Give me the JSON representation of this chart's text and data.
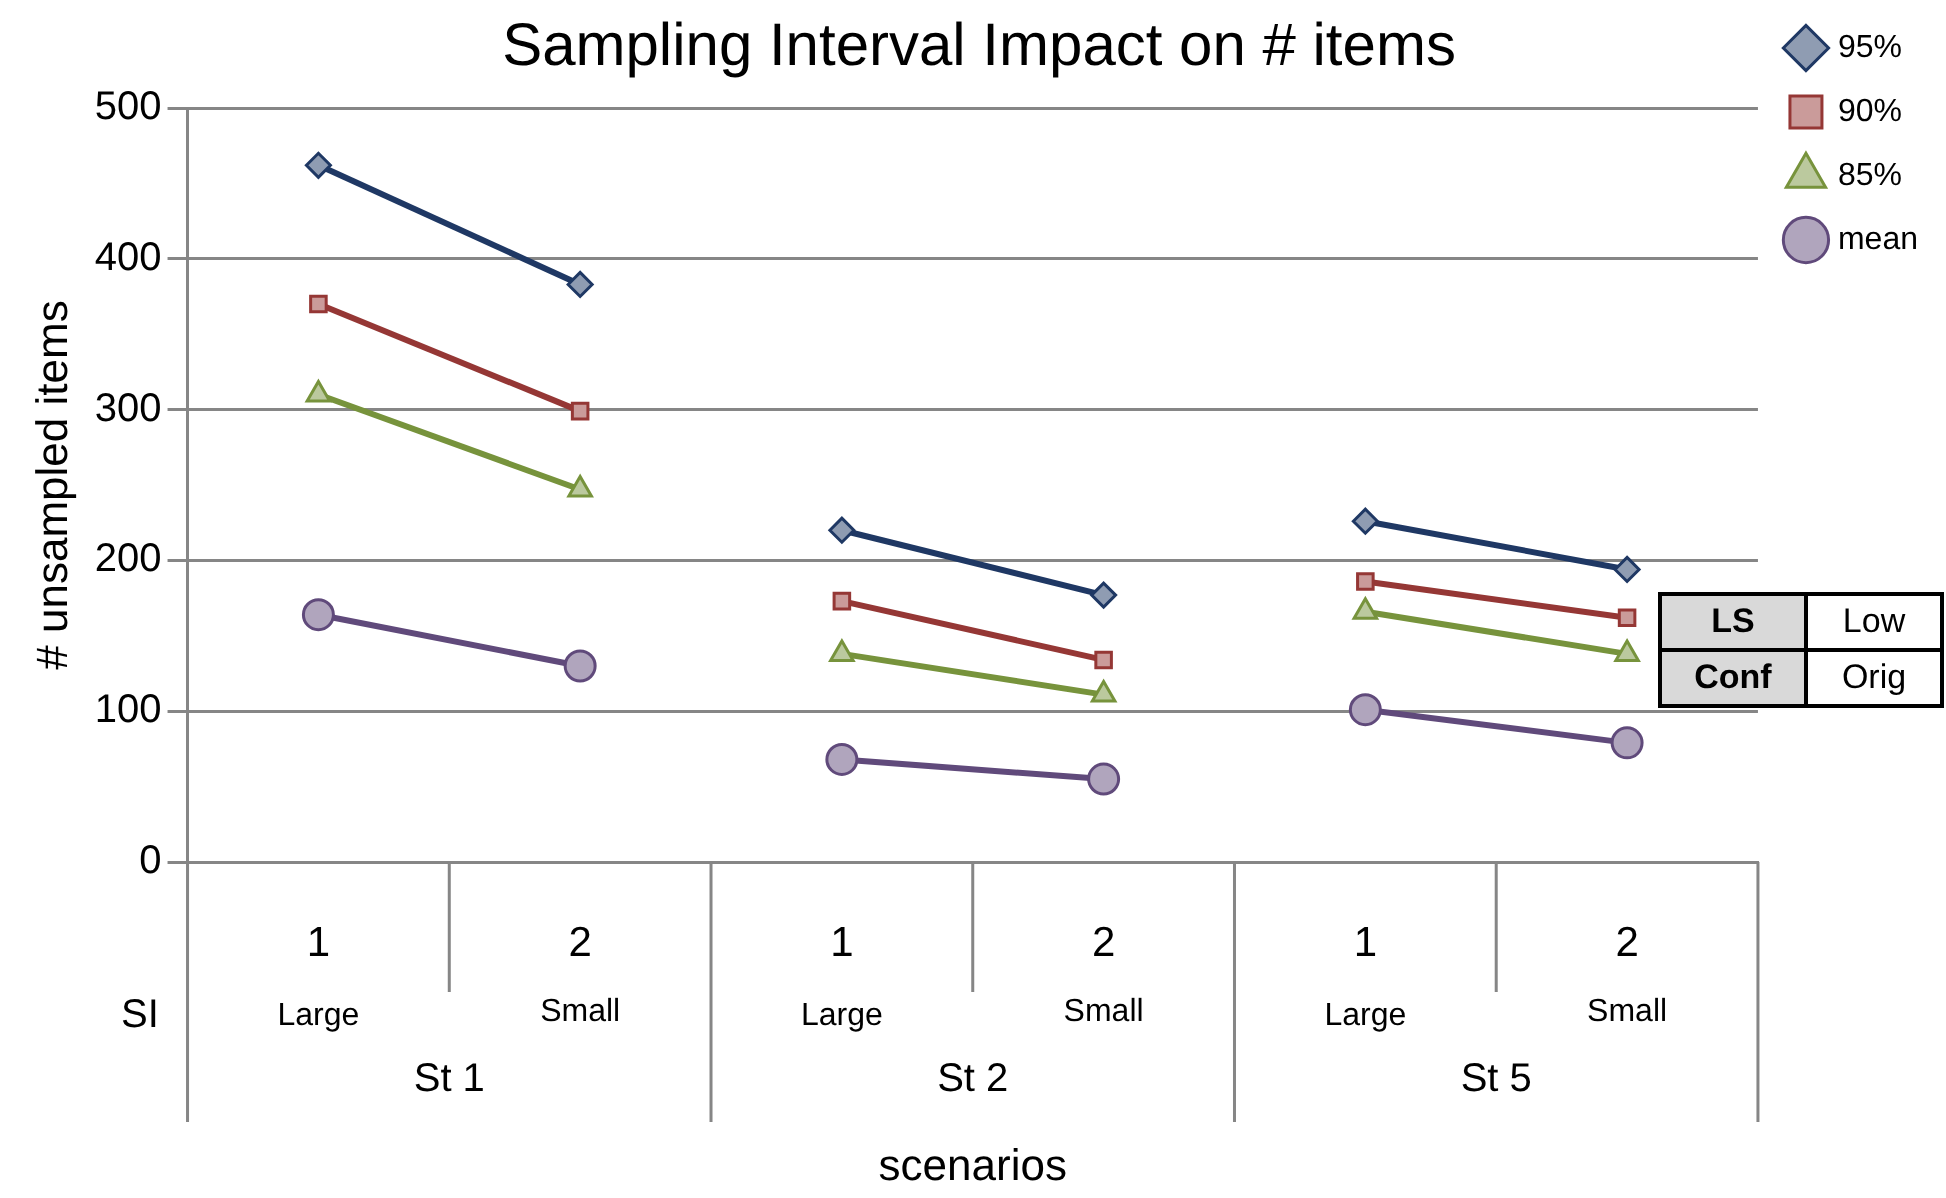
{
  "chart_data": {
    "type": "line",
    "title": "Sampling Interval Impact on # items",
    "xlabel": "scenarios",
    "ylabel": "# unsampled items",
    "categories": [
      "1",
      "2",
      "1",
      "2",
      "1",
      "2"
    ],
    "series": [
      {
        "name": "95%",
        "color": "#1f3864",
        "marker": "diamond",
        "values": [
          462,
          383,
          220,
          177,
          226,
          194
        ]
      },
      {
        "name": "90%",
        "color": "#953735",
        "marker": "square",
        "values": [
          370,
          299,
          173,
          134,
          186,
          162
        ]
      },
      {
        "name": "85%",
        "color": "#77933c",
        "marker": "triangle",
        "values": [
          310,
          247,
          138,
          111,
          166,
          138
        ]
      },
      {
        "name": "mean",
        "color": "#604a7b",
        "marker": "circle",
        "values": [
          164,
          130,
          68,
          55,
          101,
          79
        ]
      }
    ],
    "ylim": [
      0,
      500
    ],
    "yticks": [
      0,
      100,
      200,
      300,
      400,
      500
    ],
    "grid": "y",
    "legend": "right",
    "annotations": [
      "SI",
      "Large",
      "Small",
      "Large",
      "Small",
      "Large",
      "Small",
      "St 1",
      "St 2",
      "St 5",
      "LS",
      "Low",
      "Conf",
      "Orig"
    ]
  }
}
